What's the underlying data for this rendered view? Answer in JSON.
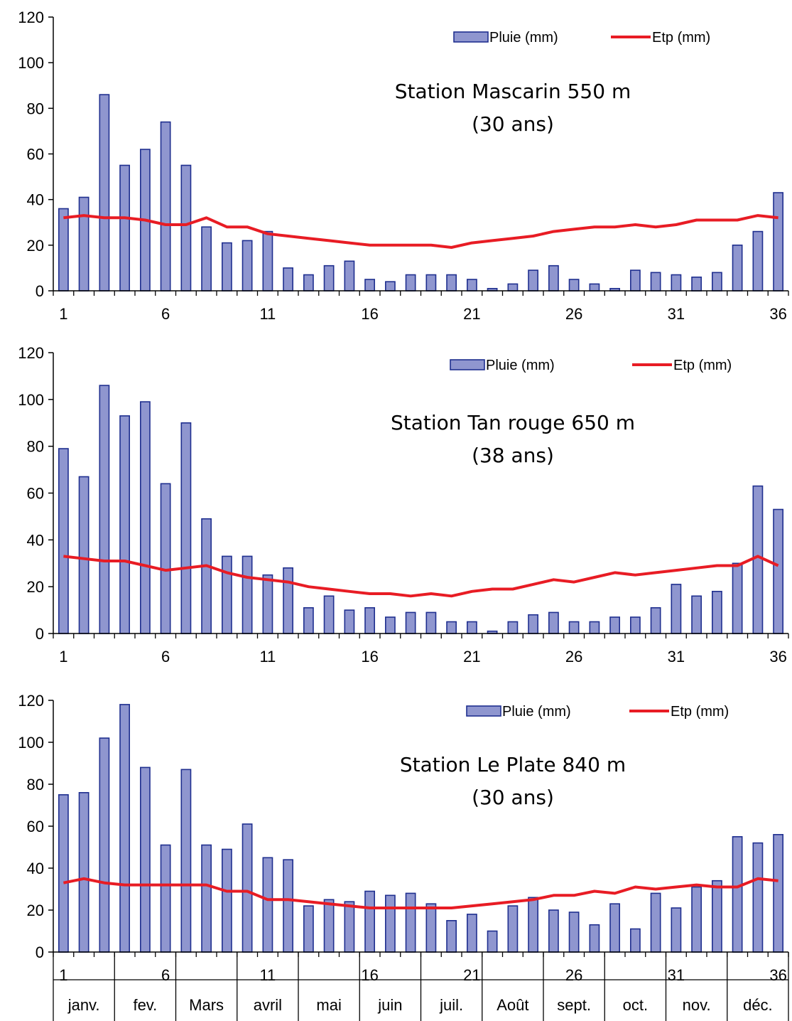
{
  "colors": {
    "bar_fill": "#8f96cf",
    "bar_stroke": "#1f2f8f",
    "line": "#e81c24",
    "axis": "#000000"
  },
  "chart_data": [
    {
      "type": "bar",
      "title": "Station Mascarin  550 m",
      "subtitle": "(30 ans)",
      "x": [
        1,
        2,
        3,
        4,
        5,
        6,
        7,
        8,
        9,
        10,
        11,
        12,
        13,
        14,
        15,
        16,
        17,
        18,
        19,
        20,
        21,
        22,
        23,
        24,
        25,
        26,
        27,
        28,
        29,
        30,
        31,
        32,
        33,
        34,
        35,
        36
      ],
      "x_tick_labels": [
        "1",
        "6",
        "11",
        "16",
        "21",
        "26",
        "31",
        "36"
      ],
      "y_tick_labels": [
        "0",
        "20",
        "40",
        "60",
        "80",
        "100",
        "120"
      ],
      "ylim": [
        0,
        120
      ],
      "legend": "top-right",
      "series": [
        {
          "name": "Pluie (mm)",
          "kind": "bar",
          "values": [
            36,
            41,
            86,
            55,
            62,
            74,
            55,
            28,
            21,
            22,
            26,
            10,
            7,
            11,
            13,
            5,
            4,
            7,
            7,
            7,
            5,
            1,
            3,
            9,
            11,
            5,
            3,
            1,
            9,
            8,
            7,
            6,
            8,
            20,
            26,
            43
          ]
        },
        {
          "name": "Etp (mm)",
          "kind": "line",
          "values": [
            32,
            33,
            32,
            32,
            31,
            29,
            29,
            32,
            28,
            28,
            25,
            24,
            23,
            22,
            21,
            20,
            20,
            20,
            20,
            19,
            21,
            22,
            23,
            24,
            26,
            27,
            28,
            28,
            29,
            28,
            29,
            31,
            31,
            31,
            33,
            32
          ]
        }
      ]
    },
    {
      "type": "bar",
      "title": "Station Tan rouge  650 m",
      "subtitle": "(38 ans)",
      "x": [
        1,
        2,
        3,
        4,
        5,
        6,
        7,
        8,
        9,
        10,
        11,
        12,
        13,
        14,
        15,
        16,
        17,
        18,
        19,
        20,
        21,
        22,
        23,
        24,
        25,
        26,
        27,
        28,
        29,
        30,
        31,
        32,
        33,
        34,
        35,
        36
      ],
      "x_tick_labels": [
        "1",
        "6",
        "11",
        "16",
        "21",
        "26",
        "31",
        "36"
      ],
      "y_tick_labels": [
        "0",
        "20",
        "40",
        "60",
        "80",
        "100",
        "120"
      ],
      "ylim": [
        0,
        120
      ],
      "legend": "top-right",
      "series": [
        {
          "name": "Pluie (mm)",
          "kind": "bar",
          "values": [
            79,
            67,
            106,
            93,
            99,
            64,
            90,
            49,
            33,
            33,
            25,
            28,
            11,
            16,
            10,
            11,
            7,
            9,
            9,
            5,
            5,
            1,
            5,
            8,
            9,
            5,
            5,
            7,
            7,
            11,
            21,
            16,
            18,
            30,
            63,
            53
          ]
        },
        {
          "name": "Etp (mm)",
          "kind": "line",
          "values": [
            33,
            32,
            31,
            31,
            29,
            27,
            28,
            29,
            26,
            24,
            23,
            22,
            20,
            19,
            18,
            17,
            17,
            16,
            17,
            16,
            18,
            19,
            19,
            21,
            23,
            22,
            24,
            26,
            25,
            26,
            27,
            28,
            29,
            29,
            33,
            29
          ]
        }
      ]
    },
    {
      "type": "bar",
      "title": "Station Le Plate   840 m",
      "subtitle": "(30 ans)",
      "x": [
        1,
        2,
        3,
        4,
        5,
        6,
        7,
        8,
        9,
        10,
        11,
        12,
        13,
        14,
        15,
        16,
        17,
        18,
        19,
        20,
        21,
        22,
        23,
        24,
        25,
        26,
        27,
        28,
        29,
        30,
        31,
        32,
        33,
        34,
        35,
        36
      ],
      "x_tick_labels": [
        "1",
        "6",
        "11",
        "16",
        "21",
        "26",
        "31",
        "36"
      ],
      "y_tick_labels": [
        "0",
        "20",
        "40",
        "60",
        "80",
        "100",
        "120"
      ],
      "ylim": [
        0,
        120
      ],
      "legend": "top-right",
      "months": [
        "janv.",
        "fev.",
        "Mars",
        "avril",
        "mai",
        "juin",
        "juil.",
        "Août",
        "sept.",
        "oct.",
        "nov.",
        "déc."
      ],
      "series": [
        {
          "name": "Pluie (mm)",
          "kind": "bar",
          "values": [
            75,
            76,
            102,
            118,
            88,
            51,
            87,
            51,
            49,
            61,
            45,
            44,
            22,
            25,
            24,
            29,
            27,
            28,
            23,
            15,
            18,
            10,
            22,
            26,
            20,
            19,
            13,
            23,
            11,
            28,
            21,
            31,
            34,
            55,
            52,
            56
          ]
        },
        {
          "name": "Etp (mm)",
          "kind": "line",
          "values": [
            33,
            35,
            33,
            32,
            32,
            32,
            32,
            32,
            29,
            29,
            25,
            25,
            24,
            23,
            22,
            21,
            21,
            21,
            21,
            21,
            22,
            23,
            24,
            25,
            27,
            27,
            29,
            28,
            31,
            30,
            31,
            32,
            31,
            31,
            35,
            34
          ]
        }
      ]
    }
  ]
}
